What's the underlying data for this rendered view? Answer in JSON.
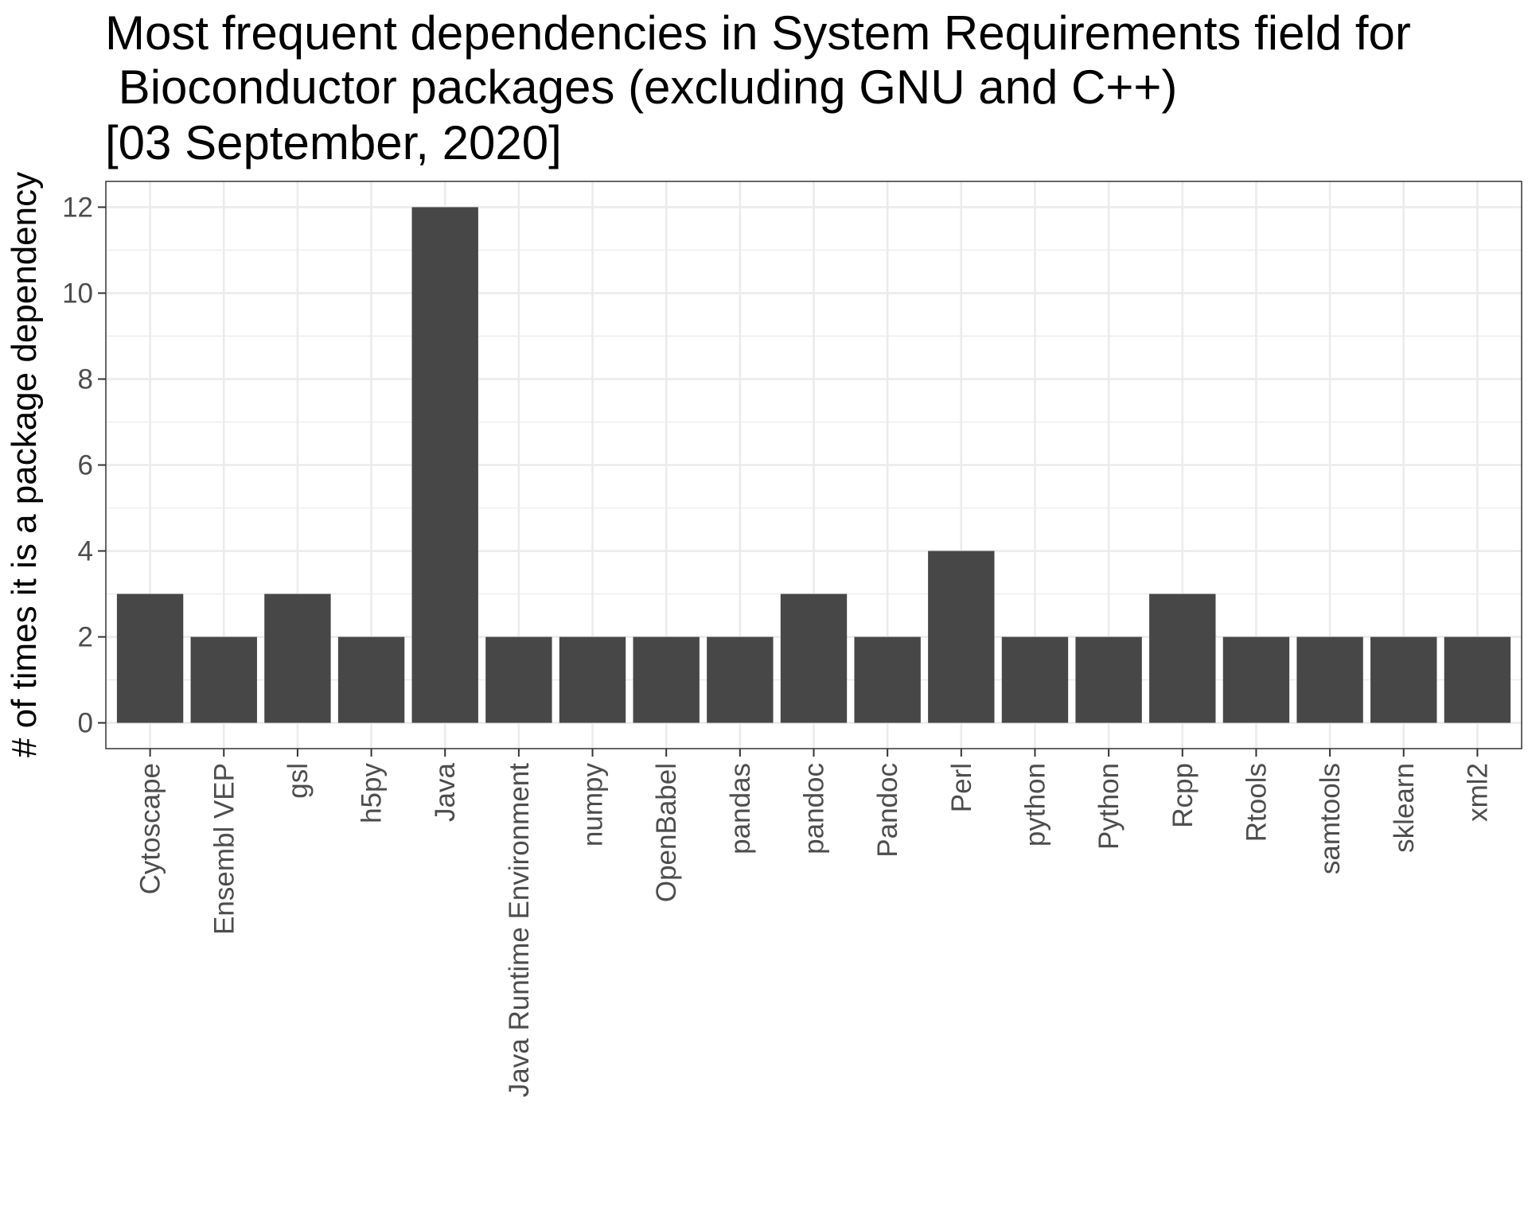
{
  "chart_data": {
    "type": "bar",
    "title_lines": [
      "Most frequent dependencies in System Requirements field for",
      " Bioconductor packages (excluding GNU and C++)",
      "[03 September, 2020]"
    ],
    "xlabel": "",
    "ylabel": "# of times it is a package dependency",
    "categories": [
      "Cytoscape",
      "Ensembl VEP",
      "gsl",
      "h5py",
      "Java",
      "Java Runtime Environment",
      "numpy",
      "OpenBabel",
      "pandas",
      "pandoc",
      "Pandoc",
      "Perl",
      "python",
      "Python",
      "Rcpp",
      "Rtools",
      "samtools",
      "sklearn",
      "xml2"
    ],
    "values": [
      3,
      2,
      3,
      2,
      12,
      2,
      2,
      2,
      2,
      3,
      2,
      4,
      2,
      2,
      3,
      2,
      2,
      2,
      2
    ],
    "ylim": [
      -0.6,
      12.6
    ],
    "yticks": [
      0,
      2,
      4,
      6,
      8,
      10,
      12
    ],
    "grid": true,
    "legend": "none",
    "bar_color": "#474747",
    "grid_color": "#ebebeb",
    "tick_color": "#4d4d4d"
  }
}
